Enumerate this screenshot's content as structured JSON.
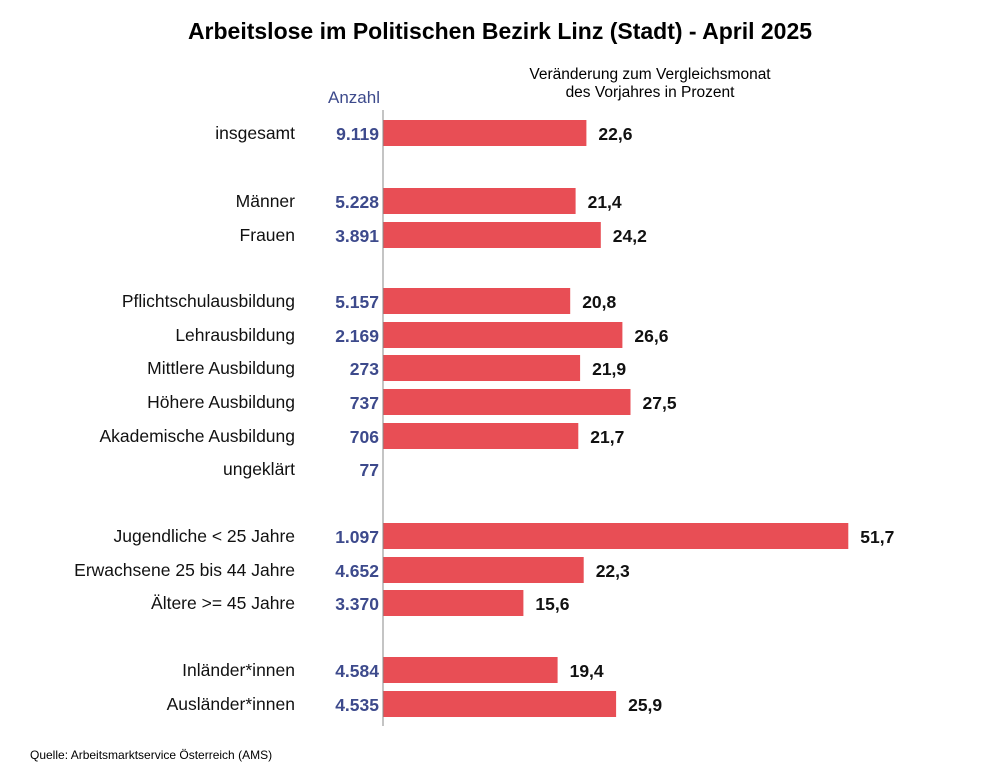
{
  "header": {
    "title": "Arbeitslose im Politischen Bezirk Linz (Stadt) - April 2025",
    "count_heading": "Anzahl",
    "change_heading_line1": "Veränderung zum Vergleichsmonat",
    "change_heading_line2": "des Vorjahres in Prozent"
  },
  "footer": {
    "source": "Quelle: Arbeitsmarktservice Österreich (AMS)"
  },
  "colors": {
    "bar": "#e84e55",
    "count_text": "#3d4a8c",
    "axis": "#888888"
  },
  "chart_data": {
    "type": "bar",
    "orientation": "horizontal",
    "title": "Arbeitslose im Politischen Bezirk Linz (Stadt) - April 2025",
    "xlim": [
      0,
      55
    ],
    "grid": false,
    "rows": [
      {
        "label": "insgesamt",
        "count": "9.119",
        "change": 22.6,
        "change_label": "22,6"
      },
      {
        "label": "Männer",
        "count": "5.228",
        "change": 21.4,
        "change_label": "21,4"
      },
      {
        "label": "Frauen",
        "count": "3.891",
        "change": 24.2,
        "change_label": "24,2"
      },
      {
        "label": "Pflichtschulausbildung",
        "count": "5.157",
        "change": 20.8,
        "change_label": "20,8"
      },
      {
        "label": "Lehrausbildung",
        "count": "2.169",
        "change": 26.6,
        "change_label": "26,6"
      },
      {
        "label": "Mittlere Ausbildung",
        "count": "273",
        "change": 21.9,
        "change_label": "21,9"
      },
      {
        "label": "Höhere Ausbildung",
        "count": "737",
        "change": 27.5,
        "change_label": "27,5"
      },
      {
        "label": "Akademische Ausbildung",
        "count": "706",
        "change": 21.7,
        "change_label": "21,7"
      },
      {
        "label": "ungeklärt",
        "count": "77",
        "change": null,
        "change_label": ""
      },
      {
        "label": "Jugendliche < 25 Jahre",
        "count": "1.097",
        "change": 51.7,
        "change_label": "51,7"
      },
      {
        "label": "Erwachsene 25 bis 44 Jahre",
        "count": "4.652",
        "change": 22.3,
        "change_label": "22,3"
      },
      {
        "label": "Ältere >= 45 Jahre",
        "count": "3.370",
        "change": 15.6,
        "change_label": "15,6"
      },
      {
        "label": "Inländer*innen",
        "count": "4.584",
        "change": 19.4,
        "change_label": "19,4"
      },
      {
        "label": "Ausländer*innen",
        "count": "4.535",
        "change": 25.9,
        "change_label": "25,9"
      }
    ]
  }
}
